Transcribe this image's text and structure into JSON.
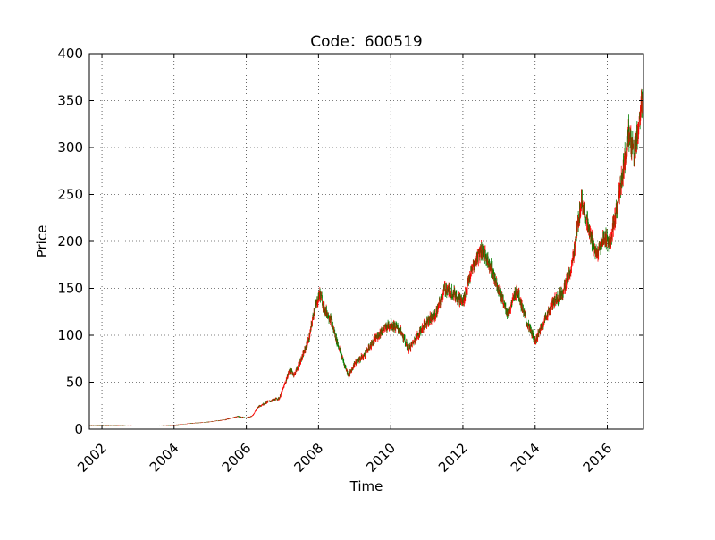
{
  "chart_data": {
    "type": "candlestick",
    "title": "Code：600519",
    "xlabel": "Time",
    "ylabel": "Price",
    "ylim": [
      0,
      400
    ],
    "xlim": [
      "2001-08-27",
      "2017-01-01"
    ],
    "yticks": [
      0,
      50,
      100,
      150,
      200,
      250,
      300,
      350,
      400
    ],
    "xticks": [
      "2002",
      "2004",
      "2006",
      "2008",
      "2010",
      "2012",
      "2014",
      "2016"
    ],
    "grid": true,
    "colors": {
      "up": "#ff0000",
      "down": "#008000"
    },
    "price_path": [
      [
        "2001-08-27",
        4.5
      ],
      [
        "2001-12-01",
        4.3
      ],
      [
        "2002-06-01",
        4.0
      ],
      [
        "2002-12-01",
        3.6
      ],
      [
        "2003-06-01",
        3.4
      ],
      [
        "2003-12-01",
        4.0
      ],
      [
        "2004-06-01",
        6.0
      ],
      [
        "2004-12-01",
        7.5
      ],
      [
        "2005-06-01",
        10.0
      ],
      [
        "2005-10-01",
        13.5
      ],
      [
        "2006-01-01",
        12.0
      ],
      [
        "2006-03-01",
        14.0
      ],
      [
        "2006-05-01",
        24.0
      ],
      [
        "2006-08-01",
        29.0
      ],
      [
        "2006-12-01",
        33.0
      ],
      [
        "2007-01-15",
        45.0
      ],
      [
        "2007-03-15",
        63.0
      ],
      [
        "2007-05-01",
        58.0
      ],
      [
        "2007-08-01",
        80.0
      ],
      [
        "2007-10-01",
        98.0
      ],
      [
        "2007-11-15",
        125.0
      ],
      [
        "2008-01-15",
        145.0
      ],
      [
        "2008-03-01",
        128.0
      ],
      [
        "2008-05-01",
        118.0
      ],
      [
        "2008-07-01",
        95.0
      ],
      [
        "2008-09-15",
        70.0
      ],
      [
        "2008-11-01",
        57.0
      ],
      [
        "2009-01-01",
        70.0
      ],
      [
        "2009-04-01",
        78.0
      ],
      [
        "2009-07-01",
        92.0
      ],
      [
        "2009-10-01",
        105.0
      ],
      [
        "2010-01-01",
        112.0
      ],
      [
        "2010-04-01",
        106.0
      ],
      [
        "2010-07-01",
        85.0
      ],
      [
        "2010-10-01",
        100.0
      ],
      [
        "2011-01-01",
        115.0
      ],
      [
        "2011-04-01",
        122.0
      ],
      [
        "2011-07-01",
        150.0
      ],
      [
        "2011-10-01",
        145.0
      ],
      [
        "2012-01-01",
        135.0
      ],
      [
        "2012-04-01",
        170.0
      ],
      [
        "2012-07-01",
        192.0
      ],
      [
        "2012-10-01",
        175.0
      ],
      [
        "2013-01-01",
        148.0
      ],
      [
        "2013-04-01",
        122.0
      ],
      [
        "2013-07-01",
        150.0
      ],
      [
        "2013-10-01",
        115.0
      ],
      [
        "2014-01-01",
        94.0
      ],
      [
        "2014-04-01",
        115.0
      ],
      [
        "2014-07-01",
        135.0
      ],
      [
        "2014-10-01",
        145.0
      ],
      [
        "2015-01-01",
        170.0
      ],
      [
        "2015-04-15",
        245.0
      ],
      [
        "2015-07-01",
        210.0
      ],
      [
        "2015-09-15",
        185.0
      ],
      [
        "2015-12-01",
        205.0
      ],
      [
        "2016-02-01",
        198.0
      ],
      [
        "2016-05-01",
        250.0
      ],
      [
        "2016-08-01",
        315.0
      ],
      [
        "2016-10-01",
        295.0
      ],
      [
        "2016-12-31",
        355.0
      ]
    ]
  }
}
